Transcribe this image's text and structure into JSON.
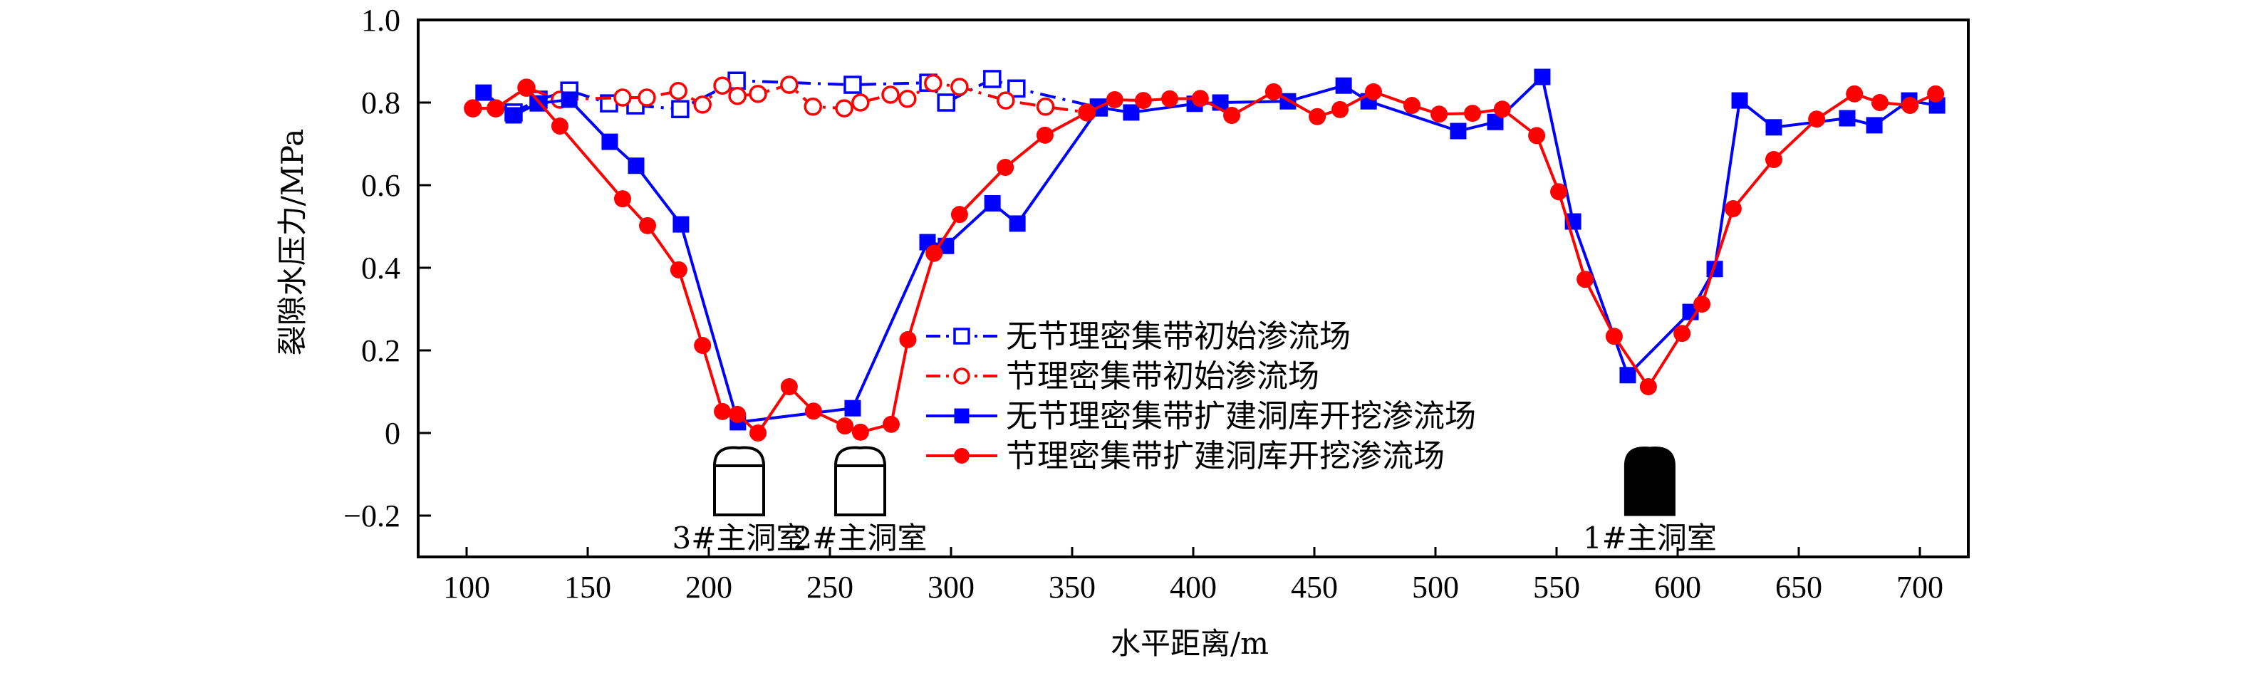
{
  "chart_data": {
    "type": "line",
    "title": "",
    "xlabel": "水平距离/m",
    "ylabel": "裂隙水压力/MPa",
    "xlim": [
      80,
      720
    ],
    "ylim": [
      -0.3,
      1.0
    ],
    "xticks": [
      100,
      150,
      200,
      250,
      300,
      350,
      400,
      450,
      500,
      550,
      600,
      650,
      700
    ],
    "yticks": [
      -0.2,
      0,
      0.2,
      0.4,
      0.6,
      0.8,
      1.0
    ],
    "ytick_labels": [
      "−0.2",
      "0",
      "0.2",
      "0.4",
      "0.6",
      "0.8",
      "1.0"
    ],
    "grid": false,
    "legend_position": "center",
    "series": [
      {
        "name": "无节理密集带初始渗流场",
        "color": "#0000ff",
        "line": "dash-dot",
        "marker": "open-square",
        "x": [
          119.4,
          129.7,
          142.4,
          158.8,
          169.7,
          188.2,
          211.5,
          259.4,
          290.6,
          298,
          317,
          327,
          361
        ],
        "y": [
          0.776,
          0.807,
          0.829,
          0.798,
          0.793,
          0.784,
          0.853,
          0.843,
          0.848,
          0.8,
          0.857,
          0.834,
          0.788
        ]
      },
      {
        "name": "节理密集带初始渗流场",
        "color": "#ff0000",
        "line": "dash-dot",
        "marker": "open-circle",
        "x": [
          102.6,
          112,
          124.7,
          138.5,
          164.4,
          174.4,
          187.4,
          197.4,
          205.6,
          211.8,
          220.3,
          233.2,
          243,
          255.9,
          262.6,
          275,
          282,
          292.6,
          303.5,
          322.6,
          339,
          356.2
        ],
        "y": [
          0.786,
          0.786,
          0.836,
          0.807,
          0.812,
          0.812,
          0.828,
          0.795,
          0.841,
          0.816,
          0.821,
          0.843,
          0.79,
          0.786,
          0.8,
          0.819,
          0.809,
          0.847,
          0.838,
          0.805,
          0.79,
          0.776
        ]
      },
      {
        "name": "无节理密集带扩建洞库开挖渗流场",
        "color": "#0000ff",
        "line": "solid",
        "marker": "filled-square",
        "x": [
          107,
          119.4,
          129.4,
          142.4,
          159.1,
          170,
          188.5,
          212,
          259.4,
          290.3,
          297.9,
          317.1,
          327.4,
          361.2,
          374.4,
          400.6,
          411.2,
          439.1,
          462.1,
          472.4,
          509.4,
          524.7,
          544.1,
          556.8,
          579.4,
          605.3,
          615.3,
          625.6,
          639.7,
          670,
          681.2,
          695.6,
          707.1
        ],
        "y": [
          0.824,
          0.769,
          0.798,
          0.807,
          0.705,
          0.647,
          0.505,
          0.026,
          0.06,
          0.462,
          0.453,
          0.556,
          0.507,
          0.788,
          0.776,
          0.797,
          0.8,
          0.803,
          0.841,
          0.803,
          0.731,
          0.753,
          0.862,
          0.512,
          0.14,
          0.293,
          0.397,
          0.805,
          0.74,
          0.762,
          0.745,
          0.805,
          0.793
        ]
      },
      {
        "name": "节理密集带扩建洞库开挖渗流场",
        "color": "#ff0000",
        "line": "solid",
        "marker": "filled-circle",
        "x": [
          102.6,
          112,
          124.7,
          138.5,
          164.4,
          174.7,
          187.6,
          197.4,
          205.6,
          211.8,
          220.3,
          233.2,
          243.2,
          256.2,
          262.6,
          275.3,
          282.2,
          293,
          303.5,
          322.4,
          338.8,
          356.2,
          367.6,
          379.4,
          390.3,
          402.9,
          415.9,
          433.2,
          451.2,
          460.6,
          474.4,
          490.3,
          501.5,
          515.3,
          527.6,
          541.8,
          550.9,
          561.8,
          573.8,
          587.9,
          601.8,
          610,
          622.9,
          639.7,
          657.4,
          673,
          683.5,
          695.9,
          706.5
        ],
        "y": [
          0.786,
          0.786,
          0.836,
          0.743,
          0.567,
          0.502,
          0.395,
          0.212,
          0.052,
          0.045,
          0.0,
          0.112,
          0.053,
          0.017,
          0.002,
          0.021,
          0.226,
          0.435,
          0.529,
          0.643,
          0.721,
          0.776,
          0.807,
          0.805,
          0.809,
          0.81,
          0.769,
          0.826,
          0.766,
          0.783,
          0.826,
          0.793,
          0.772,
          0.774,
          0.784,
          0.72,
          0.584,
          0.372,
          0.234,
          0.112,
          0.241,
          0.312,
          0.543,
          0.662,
          0.76,
          0.821,
          0.8,
          0.793,
          0.821
        ]
      }
    ],
    "annotations": [
      {
        "label": "3#主洞室",
        "style": "outline",
        "x": 212.5
      },
      {
        "label": "2#主洞室",
        "style": "outline",
        "x": 262.5
      },
      {
        "label": "1#主洞室",
        "style": "filled",
        "x": 588.5
      }
    ]
  }
}
